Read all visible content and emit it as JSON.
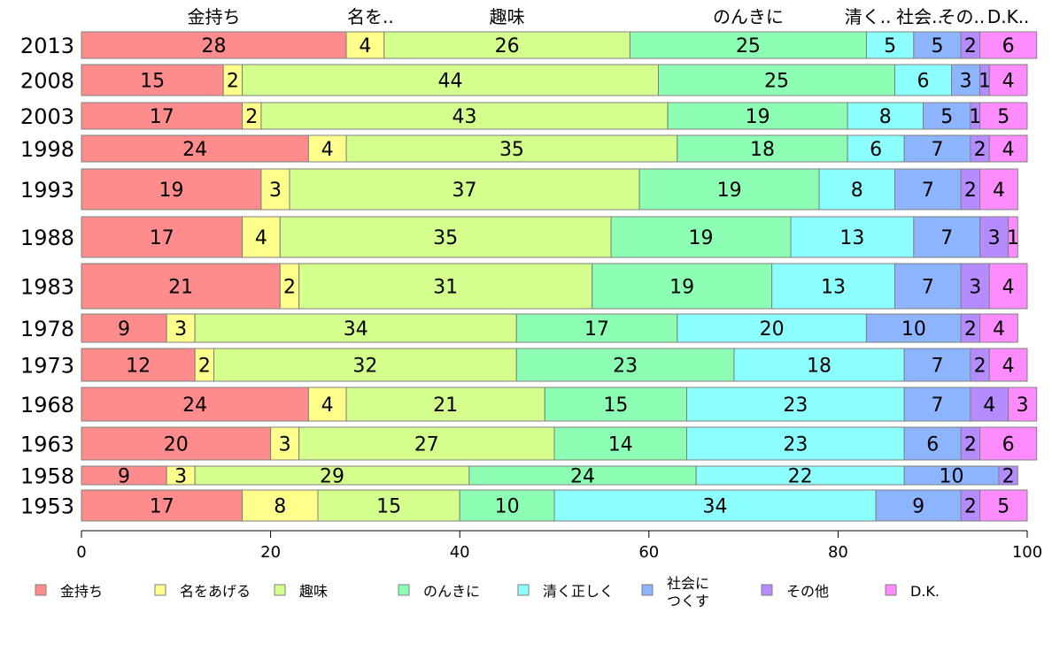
{
  "chart_data": {
    "type": "bar",
    "orientation": "horizontal-stacked-100",
    "xlim": [
      0,
      100
    ],
    "x_ticks": [
      "0",
      "20",
      "40",
      "60",
      "80",
      "100"
    ],
    "categories": [
      "2013",
      "2008",
      "2003",
      "1998",
      "1993",
      "1988",
      "1983",
      "1978",
      "1973",
      "1968",
      "1963",
      "1958",
      "1953"
    ],
    "top_labels": [
      "金持ち",
      "名を..",
      "趣味",
      "のんきに",
      "清く..",
      "社会..",
      "その..",
      "D.K.."
    ],
    "series": [
      {
        "name": "金持ち",
        "legend": "金持ち",
        "color": "#ff8c8c",
        "values": [
          28,
          15,
          17,
          24,
          19,
          17,
          21,
          9,
          12,
          24,
          20,
          9,
          17
        ]
      },
      {
        "name": "名をあげる",
        "legend": "名をあげる",
        "color": "#ffff8c",
        "values": [
          4,
          2,
          2,
          4,
          3,
          4,
          2,
          3,
          2,
          4,
          3,
          3,
          8
        ]
      },
      {
        "name": "趣味",
        "legend": "趣味",
        "color": "#d4ff8c",
        "values": [
          26,
          44,
          43,
          35,
          37,
          35,
          31,
          34,
          32,
          21,
          27,
          29,
          15
        ]
      },
      {
        "name": "のんきに",
        "legend": "のんきに",
        "color": "#8cffb4",
        "values": [
          25,
          25,
          19,
          18,
          19,
          19,
          19,
          17,
          23,
          15,
          14,
          24,
          10
        ]
      },
      {
        "name": "清く正しく",
        "legend": "清く正しく",
        "color": "#8cffff",
        "values": [
          5,
          6,
          8,
          6,
          8,
          13,
          13,
          20,
          18,
          23,
          23,
          22,
          34
        ]
      },
      {
        "name": "社会につくす",
        "legend_lines": [
          "社会に",
          "つくす"
        ],
        "color": "#8cb4ff",
        "values": [
          5,
          3,
          5,
          7,
          7,
          7,
          7,
          10,
          7,
          7,
          6,
          10,
          9
        ]
      },
      {
        "name": "その他",
        "legend": "その他",
        "color": "#b48cff",
        "values": [
          2,
          1,
          1,
          2,
          2,
          3,
          3,
          2,
          2,
          4,
          2,
          2,
          2
        ]
      },
      {
        "name": "D.K.",
        "legend": "D.K.",
        "color": "#ff8cff",
        "values": [
          6,
          4,
          5,
          4,
          4,
          1,
          4,
          4,
          4,
          3,
          6,
          0,
          5
        ]
      }
    ]
  }
}
